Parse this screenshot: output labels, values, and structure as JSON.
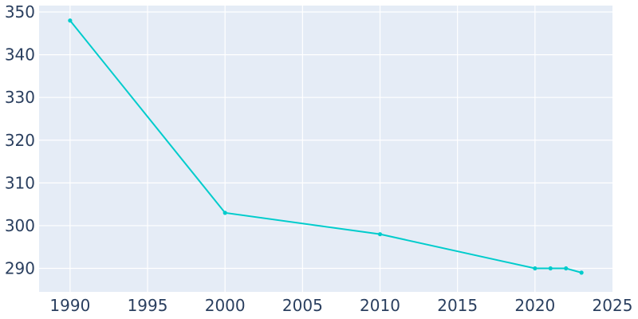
{
  "chart_data": {
    "type": "line",
    "title": "",
    "xlabel": "",
    "ylabel": "",
    "x": [
      1990,
      2000,
      2010,
      2020,
      2021,
      2022,
      2023
    ],
    "series": [
      {
        "values": [
          348,
          303,
          298,
          290,
          290,
          290,
          289
        ]
      }
    ],
    "xlim": [
      1988,
      2025
    ],
    "ylim": [
      284.5,
      351.5
    ],
    "x_ticks": [
      1990,
      1995,
      2000,
      2005,
      2010,
      2015,
      2020,
      2025
    ],
    "y_ticks": [
      290,
      300,
      310,
      320,
      330,
      340,
      350
    ],
    "grid": true,
    "legend": "none",
    "colors": {
      "series": "#00cccc",
      "plot_bg": "#e5ecf6",
      "grid": "#ffffff",
      "text": "#2a3f5f"
    }
  }
}
